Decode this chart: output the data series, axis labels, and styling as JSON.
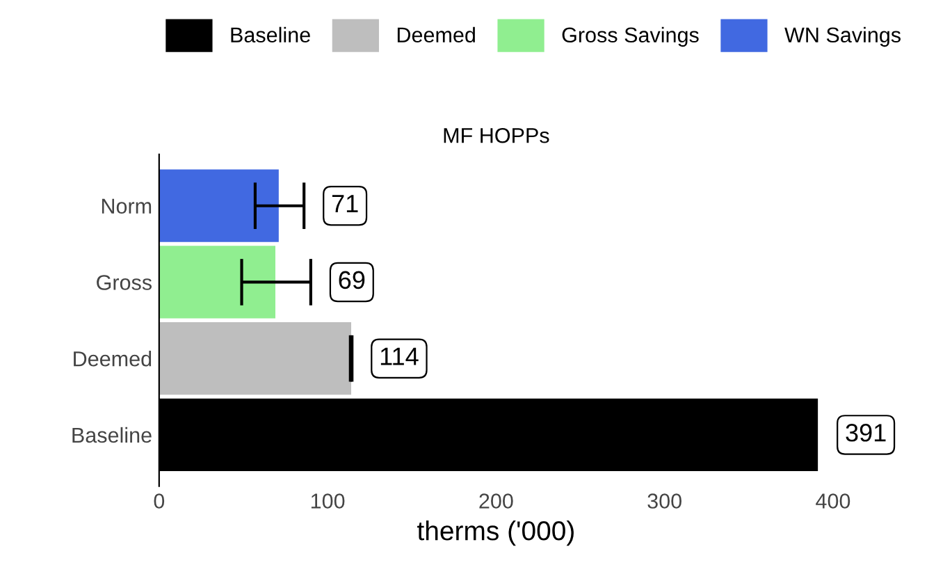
{
  "chart_data": {
    "type": "bar",
    "orientation": "horizontal",
    "title": "MF HOPPs",
    "xlabel": "therms ('000)",
    "categories": [
      "Norm",
      "Gross",
      "Deemed",
      "Baseline"
    ],
    "series": [
      {
        "name": "Baseline",
        "color": "#000000",
        "values": [
          null,
          null,
          null,
          391
        ]
      },
      {
        "name": "Deemed",
        "color": "#bebebe",
        "values": [
          null,
          null,
          114,
          null
        ],
        "errors": [
          null,
          null,
          [
            113.5,
            114.5
          ],
          null
        ]
      },
      {
        "name": "Gross Savings",
        "color": "#90ee90",
        "values": [
          null,
          69,
          null,
          null
        ],
        "errors": [
          null,
          [
            49,
            90
          ],
          null,
          null
        ]
      },
      {
        "name": "WN Savings",
        "color": "#4169e1",
        "values": [
          71,
          null,
          null,
          null
        ],
        "errors": [
          [
            57,
            86
          ],
          null,
          null,
          null
        ]
      }
    ],
    "xlim": [
      0,
      400
    ],
    "xticks": [
      0,
      100,
      200,
      300,
      400
    ],
    "data_labels": true,
    "legend": "top",
    "grid": false
  }
}
